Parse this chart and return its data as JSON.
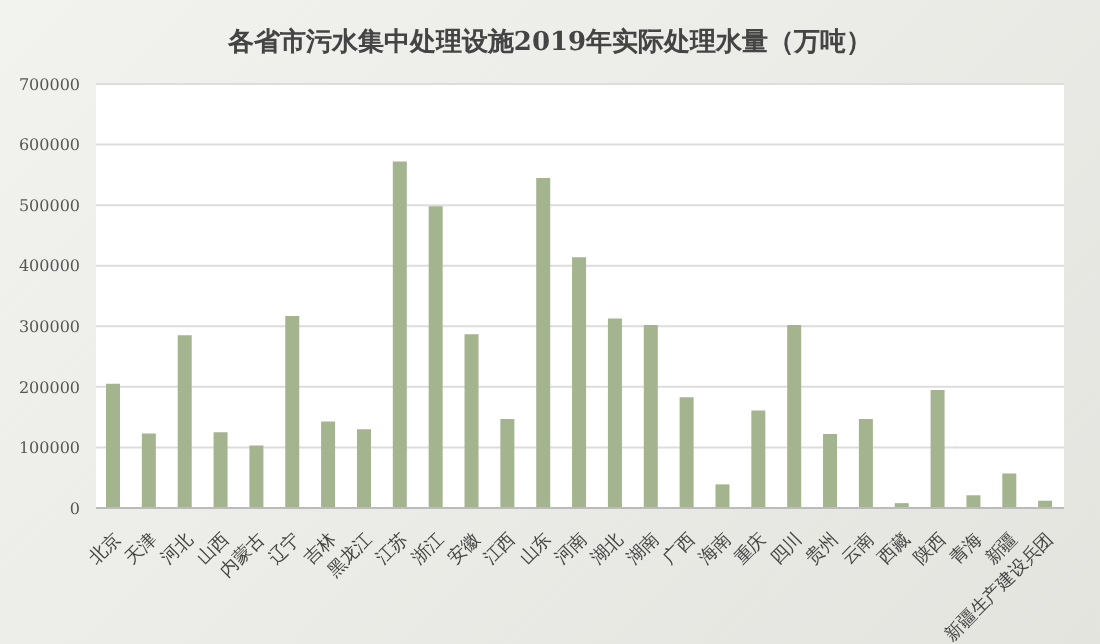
{
  "chart_data": {
    "type": "bar",
    "title": "各省市污水集中处理设施2019年实际处理水量（万吨）",
    "categories": [
      "北京",
      "天津",
      "河北",
      "山西",
      "内蒙古",
      "辽宁",
      "吉林",
      "黑龙江",
      "江苏",
      "浙江",
      "安徽",
      "江西",
      "山东",
      "河南",
      "湖北",
      "湖南",
      "广西",
      "海南",
      "重庆",
      "四川",
      "贵州",
      "云南",
      "西藏",
      "陕西",
      "青海",
      "新疆",
      "新疆生产建设兵团"
    ],
    "values": [
      205000,
      123000,
      285000,
      125000,
      103000,
      317000,
      143000,
      130000,
      572000,
      498000,
      287000,
      147000,
      545000,
      414000,
      313000,
      302000,
      183000,
      39000,
      161000,
      302000,
      122000,
      147000,
      8000,
      195000,
      21000,
      57000,
      12000
    ],
    "color": "#a3b48f",
    "ylim": [
      0,
      700000
    ],
    "yticks": [
      0,
      100000,
      200000,
      300000,
      400000,
      500000,
      600000,
      700000
    ],
    "grid": "y"
  }
}
